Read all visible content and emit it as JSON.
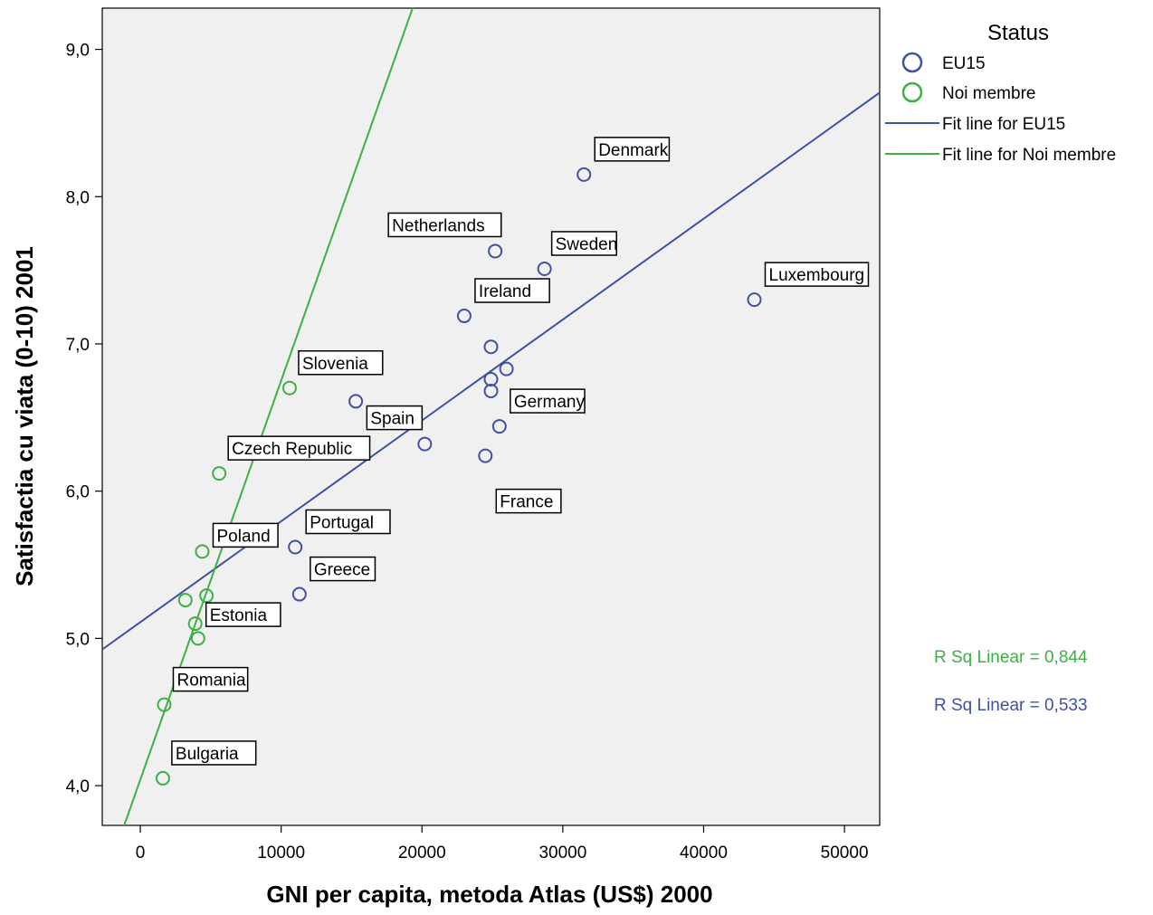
{
  "chart_data": {
    "type": "scatter",
    "xlabel": "GNI per capita, metoda Atlas (US$) 2000",
    "ylabel": "Satisfactia cu viata (0-10) 2001",
    "xlim": [
      -2700,
      52500
    ],
    "ylim": [
      3.73,
      9.28
    ],
    "x_ticks": [
      0,
      10000,
      20000,
      30000,
      40000,
      50000
    ],
    "x_tick_labels": [
      "0",
      "10000",
      "20000",
      "30000",
      "40000",
      "50000"
    ],
    "y_ticks": [
      4.0,
      5.0,
      6.0,
      7.0,
      8.0,
      9.0
    ],
    "y_tick_labels": [
      "4,0",
      "5,0",
      "6,0",
      "7,0",
      "8,0",
      "9,0"
    ],
    "grid": false,
    "legend": {
      "title": "Status",
      "position": "top-right",
      "entries": [
        "EU15",
        "Noi membre",
        "Fit line for EU15",
        "Fit line for Noi membre"
      ]
    },
    "colors": {
      "EU15": "#3f51a3",
      "Noi membre": "#3cb043",
      "plot_bg": "#f0f0f0"
    },
    "series": [
      {
        "name": "EU15",
        "points": [
          {
            "x": 31500,
            "y": 8.15,
            "label": "Denmark"
          },
          {
            "x": 25200,
            "y": 7.63,
            "label": "Netherlands"
          },
          {
            "x": 28700,
            "y": 7.51,
            "label": "Sweden"
          },
          {
            "x": 43600,
            "y": 7.3,
            "label": "Luxembourg"
          },
          {
            "x": 23000,
            "y": 7.19,
            "label": "Ireland"
          },
          {
            "x": 24900,
            "y": 6.98,
            "label": ""
          },
          {
            "x": 26000,
            "y": 6.83,
            "label": ""
          },
          {
            "x": 24900,
            "y": 6.76,
            "label": ""
          },
          {
            "x": 24900,
            "y": 6.68,
            "label": ""
          },
          {
            "x": 15300,
            "y": 6.61,
            "label": ""
          },
          {
            "x": 25500,
            "y": 6.44,
            "label": "Germany"
          },
          {
            "x": 20200,
            "y": 6.32,
            "label": "Spain"
          },
          {
            "x": 24500,
            "y": 6.24,
            "label": "France"
          },
          {
            "x": 11000,
            "y": 5.62,
            "label": "Portugal"
          },
          {
            "x": 11300,
            "y": 5.3,
            "label": "Greece"
          }
        ]
      },
      {
        "name": "Noi membre",
        "points": [
          {
            "x": 10600,
            "y": 6.7,
            "label": "Slovenia"
          },
          {
            "x": 5600,
            "y": 6.12,
            "label": "Czech Republic"
          },
          {
            "x": 4400,
            "y": 5.59,
            "label": "Poland"
          },
          {
            "x": 4700,
            "y": 5.29,
            "label": ""
          },
          {
            "x": 3200,
            "y": 5.26,
            "label": ""
          },
          {
            "x": 3900,
            "y": 5.1,
            "label": "Estonia"
          },
          {
            "x": 4100,
            "y": 5.0,
            "label": ""
          },
          {
            "x": 1700,
            "y": 4.55,
            "label": "Romania"
          },
          {
            "x": 1600,
            "y": 4.05,
            "label": "Bulgaria"
          }
        ]
      }
    ],
    "fit_lines": [
      {
        "name": "Fit line for EU15",
        "slope": 6.85e-05,
        "intercept": 5.11,
        "r_squared_label": "R Sq Linear = 0,533"
      },
      {
        "name": "Fit line for Noi membre",
        "slope": 0.000271,
        "intercept": 4.04,
        "r_squared_label": "R Sq Linear = 0,844"
      }
    ]
  }
}
